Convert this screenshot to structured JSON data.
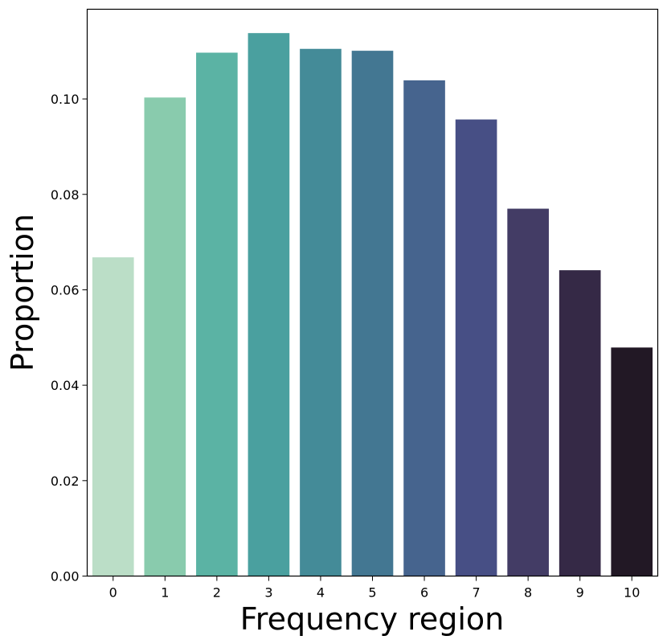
{
  "chart_data": {
    "type": "bar",
    "title": "",
    "xlabel": "Frequency region",
    "ylabel": "Proportion",
    "categories": [
      "0",
      "1",
      "2",
      "3",
      "4",
      "5",
      "6",
      "7",
      "8",
      "9",
      "10"
    ],
    "values": [
      0.0668,
      0.1003,
      0.1097,
      0.1138,
      0.1105,
      0.1101,
      0.1039,
      0.0957,
      0.077,
      0.0641,
      0.0479
    ],
    "ylim": [
      0,
      0.1188
    ],
    "yticks": [
      0.0,
      0.02,
      0.04,
      0.06,
      0.08,
      0.1
    ],
    "ytick_labels": [
      "0.00",
      "0.02",
      "0.04",
      "0.06",
      "0.08",
      "0.10"
    ],
    "colors": [
      "#bbdec7",
      "#89cbad",
      "#5bb3a4",
      "#4aa09f",
      "#448b98",
      "#437792",
      "#46648e",
      "#474f85",
      "#433c65",
      "#352946",
      "#221825"
    ],
    "grid": false,
    "legend": "none"
  }
}
